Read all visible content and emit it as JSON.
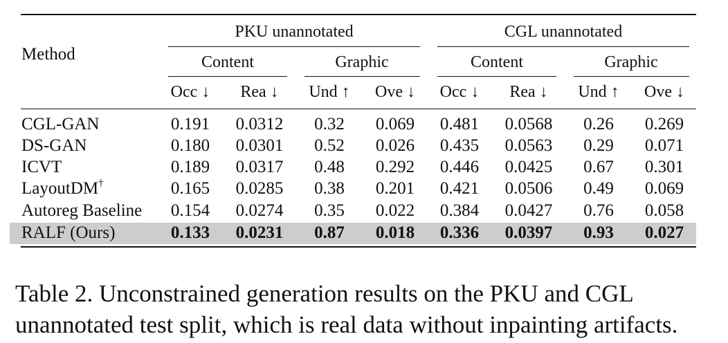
{
  "table": {
    "method_header": "Method",
    "group_headers": [
      "PKU unannotated",
      "CGL unannotated"
    ],
    "sub_headers": [
      "Content",
      "Graphic",
      "Content",
      "Graphic"
    ],
    "metric_headers": [
      "Occ ↓",
      "Rea ↓",
      "Und ↑",
      "Ove ↓",
      "Occ ↓",
      "Rea ↓",
      "Und ↑",
      "Ove ↓"
    ],
    "rows": [
      {
        "method": "CGL-GAN",
        "sup": "",
        "values": [
          "0.191",
          "0.0312",
          "0.32",
          "0.069",
          "0.481",
          "0.0568",
          "0.26",
          "0.269"
        ],
        "bold": false
      },
      {
        "method": "DS-GAN",
        "sup": "",
        "values": [
          "0.180",
          "0.0301",
          "0.52",
          "0.026",
          "0.435",
          "0.0563",
          "0.29",
          "0.071"
        ],
        "bold": false
      },
      {
        "method": "ICVT",
        "sup": "",
        "values": [
          "0.189",
          "0.0317",
          "0.48",
          "0.292",
          "0.446",
          "0.0425",
          "0.67",
          "0.301"
        ],
        "bold": false
      },
      {
        "method": "LayoutDM",
        "sup": "†",
        "values": [
          "0.165",
          "0.0285",
          "0.38",
          "0.201",
          "0.421",
          "0.0506",
          "0.49",
          "0.069"
        ],
        "bold": false
      },
      {
        "method": "Autoreg Baseline",
        "sup": "",
        "values": [
          "0.154",
          "0.0274",
          "0.35",
          "0.022",
          "0.384",
          "0.0427",
          "0.76",
          "0.058"
        ],
        "bold": false
      },
      {
        "method": "RALF (Ours)",
        "sup": "",
        "values": [
          "0.133",
          "0.0231",
          "0.87",
          "0.018",
          "0.336",
          "0.0397",
          "0.93",
          "0.027"
        ],
        "bold": true
      }
    ]
  },
  "caption": {
    "line1": "Table 2. Unconstrained generation results on the PKU and CGL",
    "line2": "unannotated test split, which is real data without inpainting artifacts."
  }
}
